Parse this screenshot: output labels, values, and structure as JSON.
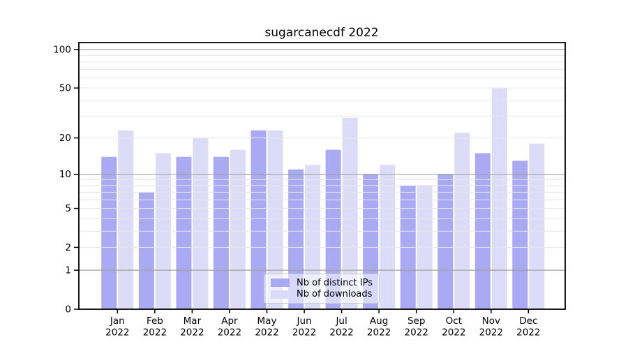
{
  "chart_data": {
    "type": "bar",
    "title": "sugarcanecdf 2022",
    "categories": [
      "Jan 2022",
      "Feb 2022",
      "Mar 2022",
      "Apr 2022",
      "May 2022",
      "Jun 2022",
      "Jul 2022",
      "Aug 2022",
      "Sep 2022",
      "Oct 2022",
      "Nov 2022",
      "Dec 2022"
    ],
    "series": [
      {
        "name": "Nb of distinct IPs",
        "color": "#a9a9f4",
        "values": [
          14,
          7,
          14,
          14,
          23,
          11,
          16,
          10,
          8,
          10,
          15,
          13
        ]
      },
      {
        "name": "Nb of downloads",
        "color": "#dcdcf9",
        "values": [
          23,
          15,
          20,
          16,
          23,
          12,
          29,
          12,
          8,
          22,
          50,
          18
        ]
      }
    ],
    "xlabel": "",
    "ylabel": "",
    "yticks": [
      0,
      1,
      2,
      5,
      10,
      20,
      50,
      100
    ],
    "minor_yticks": [
      2,
      3,
      4,
      5,
      6,
      7,
      8,
      9,
      20,
      30,
      40,
      50,
      60,
      70,
      80,
      90
    ],
    "major_grid_yticks": [
      1,
      10,
      100
    ],
    "y_scale": "symlog",
    "ylim": [
      0,
      113
    ],
    "grid": "horizontal, drawn over bars; darker lines at 1/10/100, faint elsewhere",
    "legend_position": "lower center",
    "colors": {
      "major_grid": "#a0a0a0",
      "minor_grid": "#e7e7e7",
      "axis": "#000000",
      "legend_border": "#cccccc"
    }
  }
}
